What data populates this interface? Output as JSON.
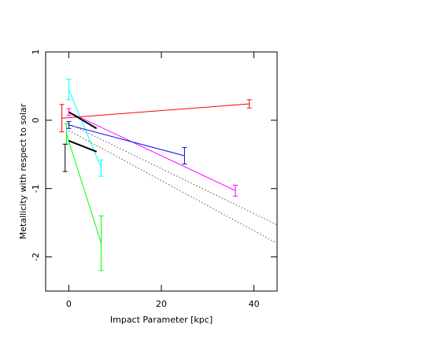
{
  "chart_data": {
    "type": "line",
    "xlabel": "Impact Parameter [kpc]",
    "ylabel": "Metallicity with respect to solar",
    "xlim": [
      -5,
      45
    ],
    "ylim": [
      -2.5,
      1
    ],
    "xticks": [
      0,
      20,
      40
    ],
    "yticks": [
      -2,
      -1,
      0,
      1
    ],
    "series": [
      {
        "color": "#ff0000",
        "x": [
          -1.5,
          39
        ],
        "values": [
          0.03,
          0.24
        ],
        "errors": [
          0.2,
          0.06
        ]
      },
      {
        "color": "#00ffff",
        "x": [
          0,
          7
        ],
        "values": [
          0.45,
          -0.7
        ],
        "errors": [
          0.15,
          0.12
        ]
      },
      {
        "color": "#00ff00",
        "x": [
          -0.5,
          7
        ],
        "values": [
          -0.2,
          -1.8
        ],
        "errors": [
          0.15,
          0.4
        ]
      },
      {
        "color": "#ff00ff",
        "x": [
          0,
          36
        ],
        "values": [
          0.12,
          -1.03
        ],
        "errors": [
          0.05,
          0.08
        ]
      },
      {
        "color": "#0000ff",
        "x": [
          0,
          25
        ],
        "values": [
          -0.07,
          -0.52
        ],
        "errors": [
          0.05,
          0.12
        ]
      },
      {
        "color": "#000000",
        "x": [
          -0.8
        ],
        "values": [
          -0.55
        ],
        "errors": [
          0.2
        ]
      },
      {
        "color": "#000000",
        "x": [
          0,
          6
        ],
        "values": [
          0.12,
          -0.12
        ],
        "linewidth": 2
      },
      {
        "color": "#000000",
        "x": [
          0,
          6
        ],
        "values": [
          -0.3,
          -0.46
        ],
        "linewidth": 2
      },
      {
        "color": "#555555",
        "x": [
          0,
          45
        ],
        "values": [
          -0.05,
          -1.53
        ],
        "linestyle": "dotted"
      },
      {
        "color": "#555555",
        "x": [
          0,
          45
        ],
        "values": [
          -0.15,
          -1.8
        ],
        "linestyle": "dotted"
      }
    ]
  }
}
